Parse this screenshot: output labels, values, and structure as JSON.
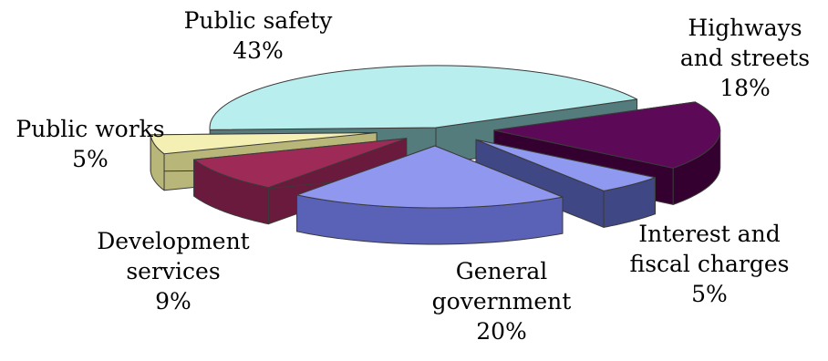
{
  "chart_data": {
    "type": "pie",
    "style": "3d-exploded",
    "slices": [
      {
        "label_lines": [
          "Public safety"
        ],
        "value": 43,
        "value_label": "43%",
        "top_color": "#b9eeee",
        "side_color": "#557c7c"
      },
      {
        "label_lines": [
          "Highways",
          "and streets"
        ],
        "value": 18,
        "value_label": "18%",
        "top_color": "#5c0a57",
        "side_color": "#33002f"
      },
      {
        "label_lines": [
          "Interest and",
          "fiscal charges"
        ],
        "value": 5,
        "value_label": "5%",
        "top_color": "#8f99ef",
        "side_color": "#3f4784"
      },
      {
        "label_lines": [
          "General",
          "government"
        ],
        "value": 20,
        "value_label": "20%",
        "top_color": "#8f97ee",
        "side_color": "#5a62b8"
      },
      {
        "label_lines": [
          "Development",
          "services"
        ],
        "value": 9,
        "value_label": "9%",
        "top_color": "#9e2a57",
        "side_color": "#6a1a3c"
      },
      {
        "label_lines": [
          "Public works"
        ],
        "value": 5,
        "value_label": "5%",
        "top_color": "#f4f0b4",
        "side_color": "#b9b67a"
      }
    ],
    "legend": "none"
  }
}
